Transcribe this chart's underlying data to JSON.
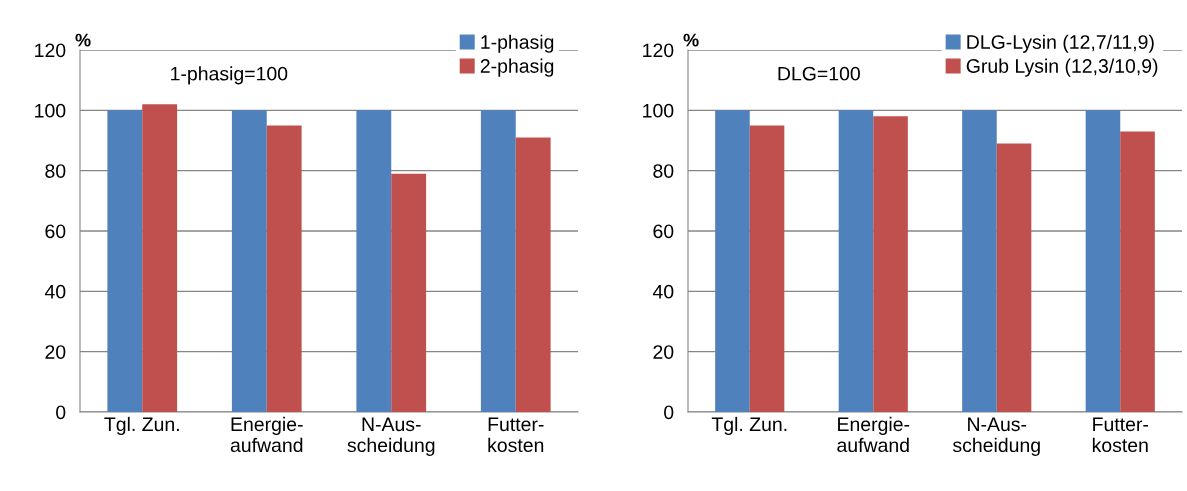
{
  "chart_data": [
    {
      "type": "bar",
      "ylabel": "%",
      "annotations": [
        "1-phasig=100"
      ],
      "categories": [
        "Tgl. Zun.",
        "Energie-\naufwand",
        "N-Aus-\nscheidung",
        "Futter-\nkosten"
      ],
      "series": [
        {
          "name": "1-phasig",
          "color": "#4f81bd",
          "values": [
            100,
            100,
            100,
            100
          ]
        },
        {
          "name": "2-phasig",
          "color": "#c0504d",
          "values": [
            102,
            95,
            79,
            91
          ]
        }
      ],
      "ylim": [
        0,
        120
      ],
      "yticks": [
        0,
        20,
        40,
        60,
        80,
        100,
        120
      ],
      "grid": "y",
      "legend": "top right"
    },
    {
      "type": "bar",
      "ylabel": "%",
      "annotations": [
        "DLG=100"
      ],
      "categories": [
        "Tgl. Zun.",
        "Energie-\naufwand",
        "N-Aus-\nscheidung",
        "Futter-\nkosten"
      ],
      "series": [
        {
          "name": "DLG-Lysin (12,7/11,9)",
          "color": "#4f81bd",
          "values": [
            100,
            100,
            100,
            100
          ]
        },
        {
          "name": "Grub Lysin (12,3/10,9)",
          "color": "#c0504d",
          "values": [
            95,
            98,
            89,
            93
          ]
        }
      ],
      "ylim": [
        0,
        120
      ],
      "yticks": [
        0,
        20,
        40,
        60,
        80,
        100,
        120
      ],
      "grid": "y",
      "legend": "top right"
    }
  ]
}
